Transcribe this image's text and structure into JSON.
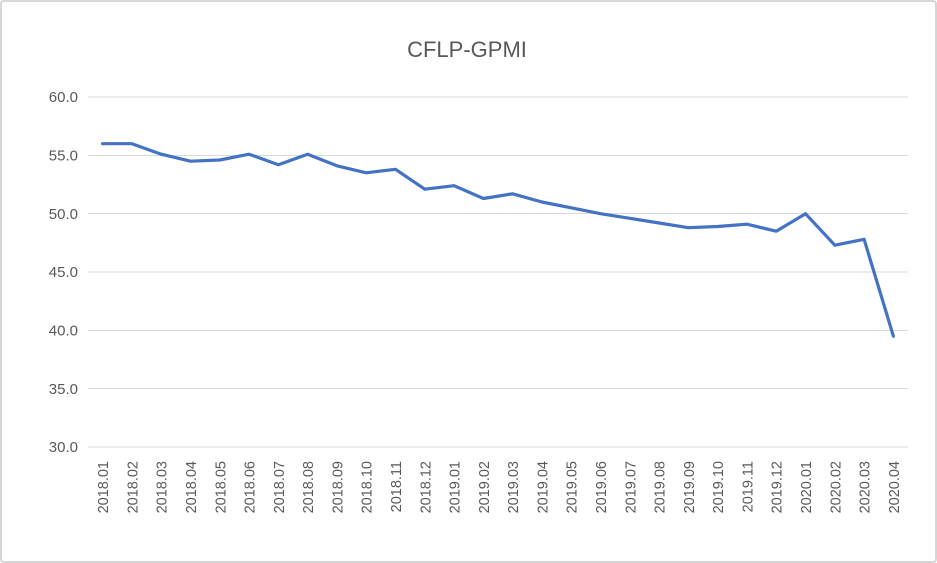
{
  "window": {
    "background_color": "#ffffff",
    "border_color": "#d6d6d6"
  },
  "chart_data": {
    "type": "line",
    "title": "CFLP-GPMI",
    "categories": [
      "2018.01",
      "2018.02",
      "2018.03",
      "2018.04",
      "2018.05",
      "2018.06",
      "2018.07",
      "2018.08",
      "2018.09",
      "2018.10",
      "2018.11",
      "2018.12",
      "2019.01",
      "2019.02",
      "2019.03",
      "2019.04",
      "2019.05",
      "2019.06",
      "2019.07",
      "2019.08",
      "2019.09",
      "2019.10",
      "2019.11",
      "2019.12",
      "2020.01",
      "2020.02",
      "2020.03",
      "2020.04"
    ],
    "values": [
      56.0,
      56.0,
      55.1,
      54.5,
      54.6,
      55.1,
      54.2,
      55.1,
      54.1,
      53.5,
      53.8,
      52.1,
      52.4,
      51.3,
      51.7,
      51.0,
      50.5,
      50.0,
      49.6,
      49.2,
      48.8,
      48.9,
      49.1,
      48.5,
      50.0,
      47.3,
      47.8,
      39.5
    ],
    "xlabel": "",
    "ylabel": "",
    "ylim": [
      30,
      60
    ],
    "ytick_step": 5,
    "ytick_labels": [
      "60.0",
      "55.0",
      "50.0",
      "45.0",
      "40.0",
      "35.0",
      "30.0"
    ],
    "grid": true,
    "legend_position": "none",
    "x_label_rotation_degrees": -90,
    "line_color": "#4472C4",
    "gridline_color": "#d9d9d9",
    "tick_label_color": "#595959",
    "title_color": "#595959"
  }
}
